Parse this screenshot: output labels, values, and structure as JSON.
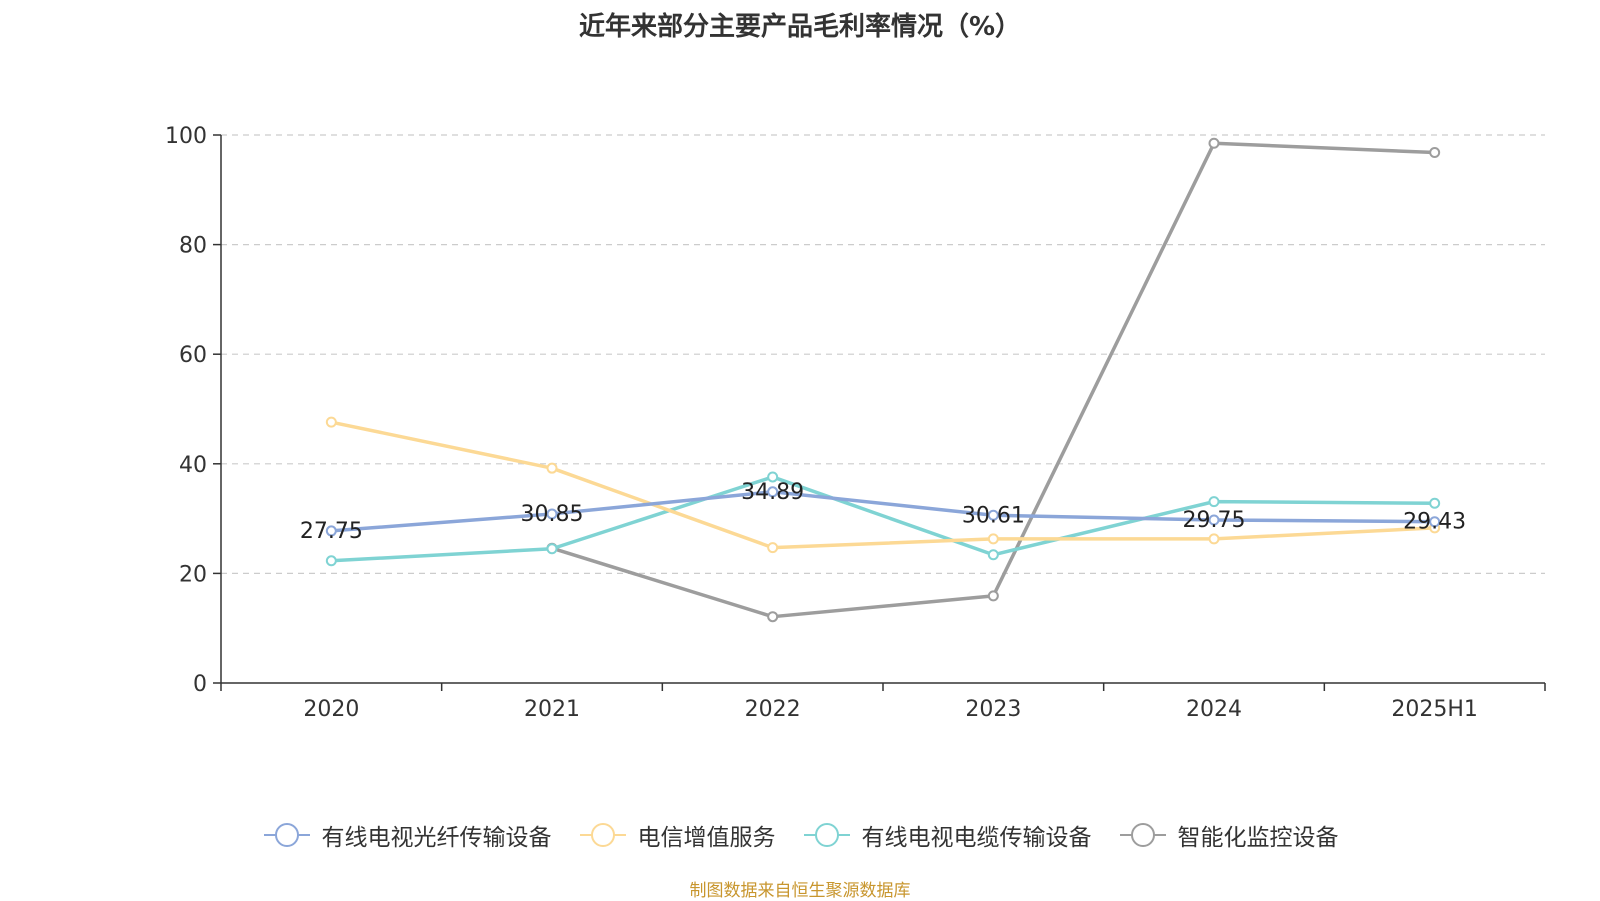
{
  "chart_data": {
    "type": "line",
    "title": "近年来部分主要产品毛利率情况（%）",
    "categories": [
      "2020",
      "2021",
      "2022",
      "2023",
      "2024",
      "2025H1"
    ],
    "ylim": [
      0,
      100
    ],
    "yticks": [
      0,
      20,
      40,
      60,
      80,
      100
    ],
    "grid": true,
    "legend_position": "bottom",
    "series": [
      {
        "name": "有线电视光纤传输设备",
        "color": "#8ba6d9",
        "values": [
          27.75,
          30.85,
          34.89,
          30.61,
          29.75,
          29.43
        ],
        "labels": [
          "27.75",
          "30.85",
          "34.89",
          "30.61",
          "29.75",
          "29.43"
        ]
      },
      {
        "name": "电信增值服务",
        "color": "#fcd995",
        "values": [
          47.6,
          39.2,
          24.7,
          26.3,
          26.3,
          28.3
        ]
      },
      {
        "name": "有线电视电缆传输设备",
        "color": "#7fd3d3",
        "values": [
          22.3,
          24.5,
          37.6,
          23.4,
          33.1,
          32.8
        ]
      },
      {
        "name": "智能化监控设备",
        "color": "#9d9d9d",
        "values": [
          null,
          24.6,
          12.1,
          15.9,
          98.5,
          96.8
        ]
      }
    ]
  },
  "source_note": "制图数据来自恒生聚源数据库"
}
